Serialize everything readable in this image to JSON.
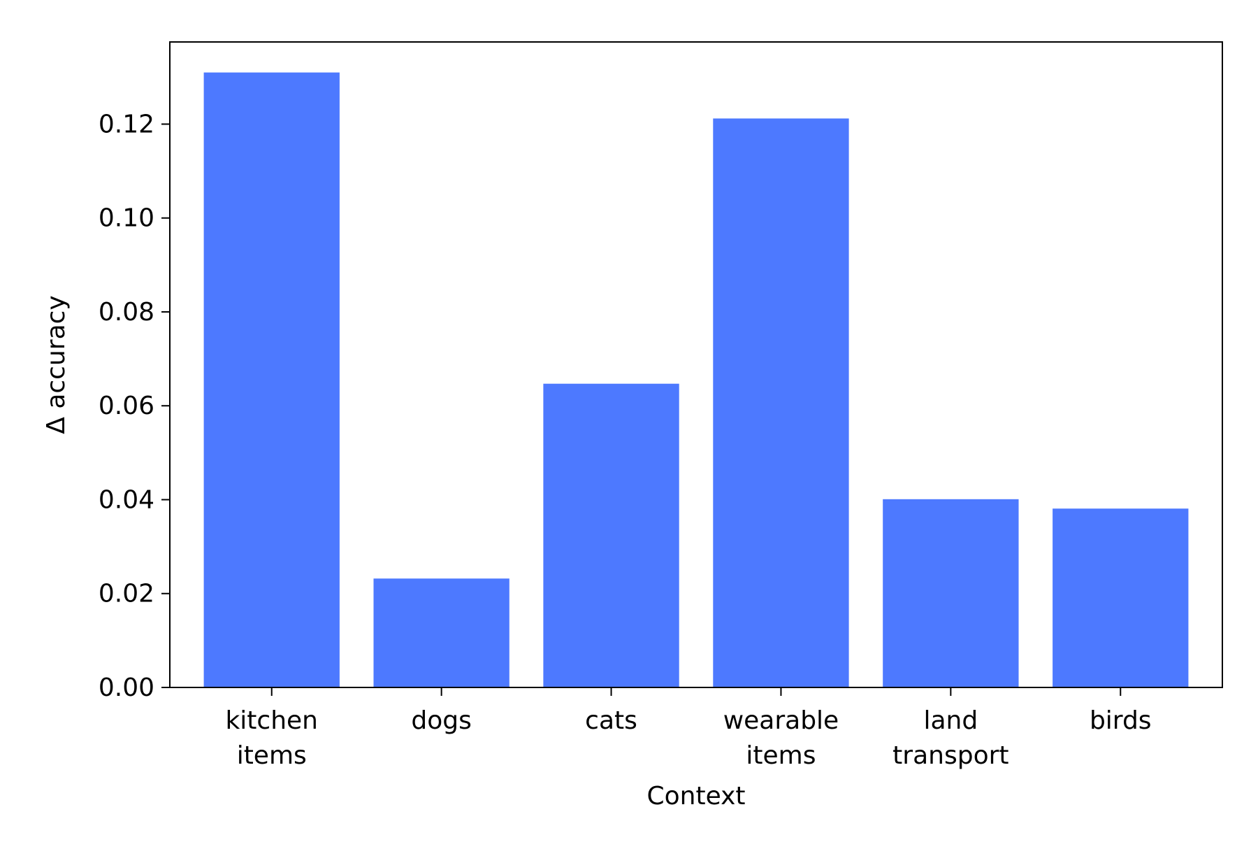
{
  "chart_data": {
    "type": "bar",
    "categories": [
      [
        "kitchen",
        "items"
      ],
      [
        "dogs"
      ],
      [
        "cats"
      ],
      [
        "wearable",
        "items"
      ],
      [
        "land",
        "transport"
      ],
      [
        "birds"
      ]
    ],
    "values": [
      0.131,
      0.0232,
      0.0647,
      0.1212,
      0.0401,
      0.0381
    ],
    "xlabel": "Context",
    "ylabel": "Δ accuracy",
    "ylim": [
      0,
      0.1375
    ],
    "yticks": [
      0.0,
      0.02,
      0.04,
      0.06,
      0.08,
      0.1,
      0.12
    ],
    "ytick_labels": [
      "0.00",
      "0.02",
      "0.04",
      "0.06",
      "0.08",
      "0.10",
      "0.12"
    ],
    "bar_color": "#4d79ff",
    "grid": false
  }
}
